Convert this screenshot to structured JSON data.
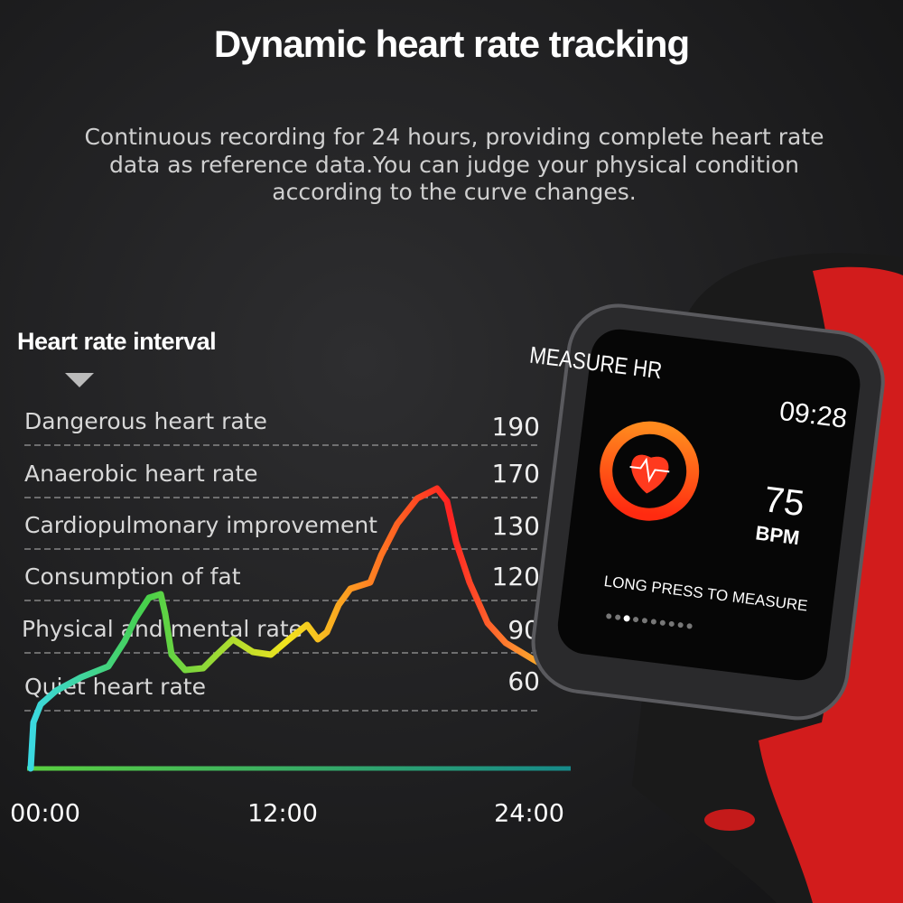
{
  "header": {
    "title": "Dynamic heart rate tracking",
    "description": [
      "Continuous recording for 24 hours, providing complete heart rate",
      "data as reference data.You can judge your physical condition",
      "according to the curve changes."
    ]
  },
  "interval": {
    "heading": "Heart rate interval",
    "rows": [
      {
        "label": "Dangerous heart rate",
        "value": 190
      },
      {
        "label": "Anaerobic heart rate",
        "value": 170
      },
      {
        "label": "Cardiopulmonary improvement",
        "value": 130
      },
      {
        "label": "Consumption of fat",
        "value": 120
      },
      {
        "label": "Physical and mental rate",
        "value": 90
      },
      {
        "label": "Quiet heart rate",
        "value": 60
      }
    ]
  },
  "time_axis": [
    "00:00",
    "12:00",
    "24:00"
  ],
  "watch": {
    "title": "MEASURE HR",
    "time": "09:28",
    "bpm": 75,
    "unit": "BPM",
    "hint": "LONG PRESS TO MEASURE"
  }
}
